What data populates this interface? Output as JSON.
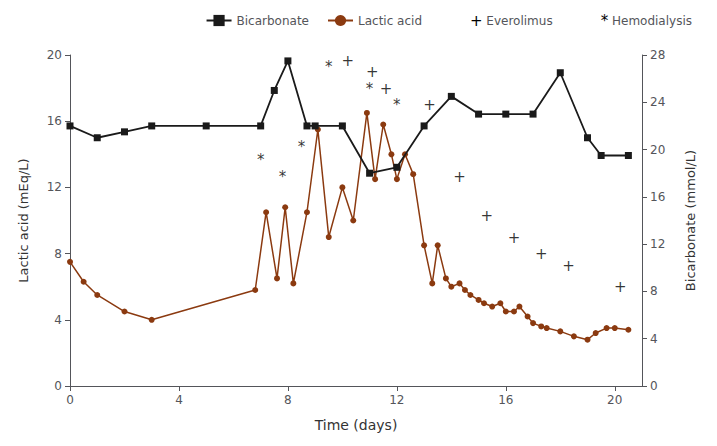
{
  "chart_data": {
    "type": "line",
    "x_label": "Time (days)",
    "y_label": "Lactic acid (mEq/L)",
    "y2_label": "Bicarbonate (mmol/L)",
    "xlim": [
      0,
      21
    ],
    "xticks": [
      0,
      4,
      8,
      12,
      16,
      20
    ],
    "ylim": [
      0,
      20
    ],
    "yticks": [
      0,
      4,
      8,
      12,
      16,
      20
    ],
    "y2lim": [
      0,
      28
    ],
    "y2ticks": [
      0,
      4,
      8,
      12,
      16,
      20,
      24,
      28
    ],
    "grid": false,
    "legend": "upper right",
    "series": [
      {
        "name": "Bicarbonate",
        "color": "#1a1a1a",
        "marker": "square",
        "axis": "y2",
        "x": [
          0,
          1,
          2,
          3,
          5,
          7,
          7.5,
          8,
          8.7,
          9,
          10,
          11,
          12,
          13,
          14,
          15,
          16,
          17,
          18,
          19,
          19.5,
          20.5
        ],
        "values": [
          22,
          21,
          21.5,
          22,
          22,
          22,
          25,
          27.5,
          22,
          22,
          22,
          18,
          18.5,
          22,
          24.5,
          23,
          23,
          23,
          26.5,
          21,
          19.5,
          19.5
        ]
      },
      {
        "name": "Lactic acid",
        "color": "#8B3A10",
        "marker": "circle",
        "x": [
          0,
          0.5,
          1,
          2,
          3,
          6.8,
          7.2,
          7.6,
          7.9,
          8.2,
          8.7,
          9.1,
          9.5,
          10.0,
          10.4,
          10.9,
          11.2,
          11.5,
          11.8,
          12.0,
          12.3,
          12.6,
          13.0,
          13.3,
          13.5,
          13.8,
          14.0,
          14.3,
          14.5,
          14.7,
          15.0,
          15.2,
          15.5,
          15.8,
          16.0,
          16.3,
          16.5,
          16.8,
          17.0,
          17.3,
          17.5,
          18.0,
          18.5,
          19.0,
          19.3,
          19.7,
          20.0,
          20.5
        ],
        "values": [
          7.5,
          6.3,
          5.5,
          4.5,
          4.0,
          5.8,
          10.5,
          6.5,
          10.8,
          6.2,
          10.5,
          15.5,
          9.0,
          12.0,
          10.0,
          16.5,
          12.5,
          15.8,
          14.0,
          12.5,
          14.0,
          12.8,
          8.5,
          6.2,
          8.5,
          6.5,
          6.0,
          6.2,
          5.8,
          5.5,
          5.2,
          5.0,
          4.8,
          5.0,
          4.5,
          4.5,
          4.8,
          4.2,
          3.8,
          3.6,
          3.5,
          3.3,
          3.0,
          2.8,
          3.2,
          3.5,
          3.5,
          3.4
        ]
      }
    ],
    "annotations": [
      {
        "name": "Everolimus",
        "text": "+",
        "color": "#000000",
        "x": [
          10.2,
          11.1,
          11.6,
          13.2,
          14.3,
          15.3,
          16.3,
          17.3,
          18.3,
          20.2
        ],
        "values": [
          19.2,
          18.5,
          17.5,
          16.5,
          12.2,
          9.8,
          8.5,
          7.5,
          6.8,
          5.5
        ]
      },
      {
        "name": "Hemodialysis",
        "text": "*",
        "color": "#000000",
        "x": [
          7.0,
          7.8,
          8.5,
          9.5,
          11.0,
          12.0
        ],
        "values": [
          13.2,
          12.2,
          14.0,
          18.8,
          17.5,
          16.5
        ]
      }
    ]
  }
}
